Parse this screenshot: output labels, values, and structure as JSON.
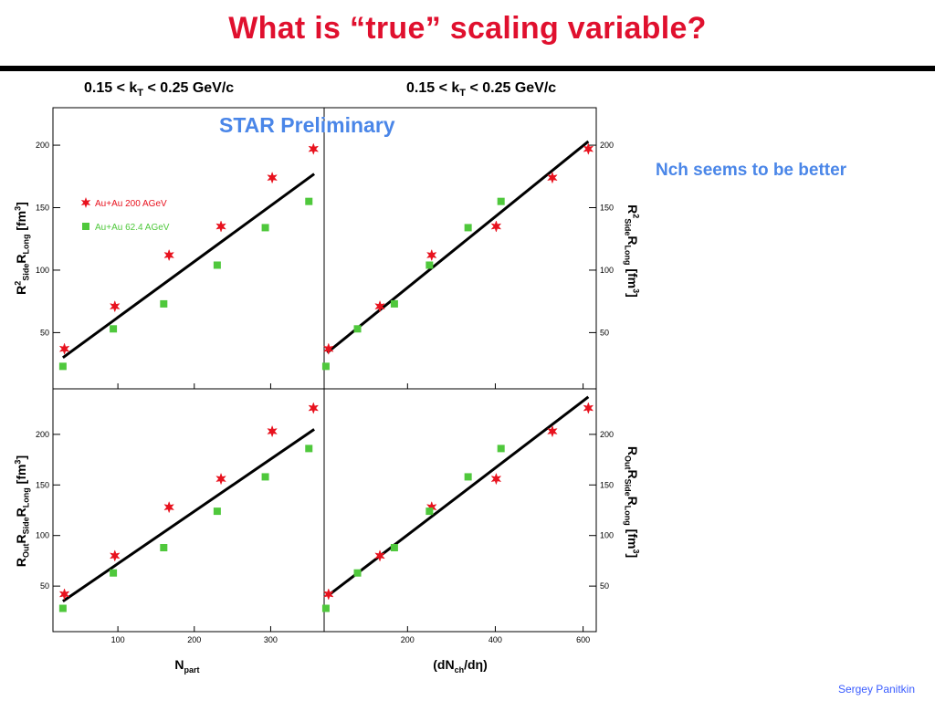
{
  "slide": {
    "title": "What is “true” scaling variable?",
    "preliminary": "STAR Preliminary",
    "note": "Nch seems to be better",
    "author": "Sergey  Panitkin",
    "kt_left": {
      "prefix": "0.15 < k",
      "sub": "T",
      "suffix": " < 0.25 GeV/c"
    },
    "kt_right": {
      "prefix": "0.15 < k",
      "sub": "T",
      "suffix": " < 0.25 GeV/c"
    },
    "ylabel_top_left": {
      "a": "R",
      "a_sup": "2",
      "a_sub": "Side",
      "b": "R",
      "b_sub": "Long",
      "unit": " [fm",
      "unit_sup": "3",
      "unit_end": "]"
    },
    "ylabel_bottom_left": {
      "a": "R",
      "a_sub": "Out",
      "b": "R",
      "b_sub": "Side",
      "c": "R",
      "c_sub": "Long",
      "unit": " [fm",
      "unit_sup": "3",
      "unit_end": "]"
    },
    "ylabel_top_right": {
      "a": "R",
      "a_sup": "2",
      "a_sub": "Side",
      "b": "R",
      "b_sub": "Long",
      "unit": " [fm",
      "unit_sup": "3",
      "unit_end": "]"
    },
    "ylabel_bottom_right": {
      "a": "R",
      "a_sub": "Out",
      "b": "R",
      "b_sub": "Side",
      "c": "R",
      "c_sub": "Long",
      "unit": " [fm",
      "unit_sup": "3",
      "unit_end": "]"
    },
    "xlabel_left": {
      "a": "N",
      "a_sub": "part"
    },
    "xlabel_right": {
      "a": "(dN",
      "a_sub": "ch",
      "b": "/dη)"
    }
  },
  "colors": {
    "title": "#e0102e",
    "accent": "#4a86e8",
    "series_200": "#e8121e",
    "series_62": "#4fc83c",
    "fit": "#000000"
  },
  "chart_data": [
    {
      "type": "scatter",
      "panel": "top-left",
      "xlim": [
        15,
        370
      ],
      "ylim": [
        5,
        230
      ],
      "yticks": [
        50,
        100,
        150,
        200
      ],
      "xticks": [
        100,
        200,
        300
      ],
      "legend": {
        "placement": "upper-left",
        "entries": [
          "Au+Au 200 AGeV",
          "Au+Au 62.4 AGeV"
        ]
      },
      "series": [
        {
          "name": "Au+Au 200 AGeV",
          "marker": "star",
          "x": [
            30,
            96,
            167,
            235,
            302,
            356
          ],
          "y": [
            37,
            71,
            112,
            135,
            174,
            197
          ]
        },
        {
          "name": "Au+Au 62.4 AGeV",
          "marker": "square",
          "x": [
            28,
            94,
            160,
            230,
            293,
            350
          ],
          "y": [
            23,
            53,
            73,
            104,
            134,
            155
          ]
        }
      ],
      "fit": {
        "x": [
          28,
          357
        ],
        "y": [
          30,
          177
        ]
      }
    },
    {
      "type": "scatter",
      "panel": "top-right",
      "xlim": [
        10,
        630
      ],
      "ylim": [
        5,
        230
      ],
      "yticks": [
        50,
        100,
        150,
        200
      ],
      "xticks": [
        200,
        400,
        600
      ],
      "series": [
        {
          "name": "Au+Au 200 AGeV",
          "marker": "star",
          "x": [
            20,
            137,
            255,
            402,
            530,
            612
          ],
          "y": [
            37,
            71,
            112,
            135,
            174,
            197
          ]
        },
        {
          "name": "Au+Au 62.4 AGeV",
          "marker": "square",
          "x": [
            14,
            86,
            170,
            250,
            338,
            413
          ],
          "y": [
            23,
            53,
            73,
            104,
            134,
            155
          ]
        }
      ],
      "fit": {
        "x": [
          17,
          612
        ],
        "y": [
          34,
          203
        ]
      }
    },
    {
      "type": "scatter",
      "panel": "bottom-left",
      "xlim": [
        15,
        370
      ],
      "ylim": [
        5,
        245
      ],
      "yticks": [
        50,
        100,
        150,
        200
      ],
      "xticks": [
        100,
        200,
        300
      ],
      "xlabel": "Npart",
      "series": [
        {
          "name": "Au+Au 200 AGeV",
          "marker": "star",
          "x": [
            30,
            96,
            167,
            235,
            302,
            356
          ],
          "y": [
            42,
            80,
            128,
            156,
            203,
            226
          ]
        },
        {
          "name": "Au+Au 62.4 AGeV",
          "marker": "square",
          "x": [
            28,
            94,
            160,
            230,
            293,
            350
          ],
          "y": [
            28,
            63,
            88,
            124,
            158,
            186
          ]
        }
      ],
      "fit": {
        "x": [
          28,
          357
        ],
        "y": [
          35,
          205
        ]
      }
    },
    {
      "type": "scatter",
      "panel": "bottom-right",
      "xlim": [
        10,
        630
      ],
      "ylim": [
        5,
        245
      ],
      "yticks": [
        50,
        100,
        150,
        200
      ],
      "xticks": [
        200,
        400,
        600
      ],
      "xlabel": "(dNch/dη)",
      "series": [
        {
          "name": "Au+Au 200 AGeV",
          "marker": "star",
          "x": [
            20,
            137,
            255,
            402,
            530,
            612
          ],
          "y": [
            42,
            80,
            128,
            156,
            203,
            226
          ]
        },
        {
          "name": "Au+Au 62.4 AGeV",
          "marker": "square",
          "x": [
            14,
            86,
            170,
            250,
            338,
            413
          ],
          "y": [
            28,
            63,
            88,
            124,
            158,
            186
          ]
        }
      ],
      "fit": {
        "x": [
          17,
          612
        ],
        "y": [
          40,
          237
        ]
      }
    }
  ]
}
